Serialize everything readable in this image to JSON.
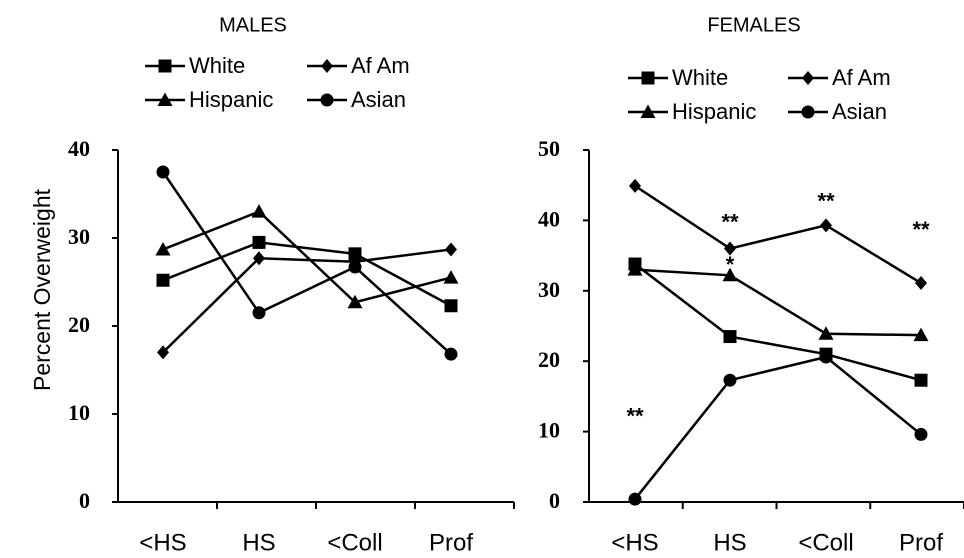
{
  "chart_data": [
    {
      "type": "line",
      "title": "MALES",
      "ylabel": "Percent Overweight",
      "xlabel": "",
      "categories": [
        "<HS",
        "HS",
        "<Coll",
        "Prof"
      ],
      "ylim": [
        0,
        40
      ],
      "yticks": [
        "0",
        "10",
        "20",
        "30",
        "40"
      ],
      "legend_location": "top",
      "series": [
        {
          "name": "White",
          "marker": "square",
          "values": [
            25.2,
            29.5,
            28.2,
            22.3
          ]
        },
        {
          "name": "Af Am",
          "marker": "diamond",
          "values": [
            17.0,
            27.7,
            27.3,
            28.7
          ]
        },
        {
          "name": "Hispanic",
          "marker": "triangle",
          "values": [
            28.7,
            33.0,
            22.7,
            25.5
          ]
        },
        {
          "name": "Asian",
          "marker": "circle",
          "values": [
            37.5,
            21.5,
            26.7,
            16.8
          ]
        }
      ],
      "annotations": []
    },
    {
      "type": "line",
      "title": "FEMALES",
      "ylabel": "",
      "xlabel": "",
      "categories": [
        "<HS",
        "HS",
        "<Coll",
        "Prof"
      ],
      "ylim": [
        0,
        50
      ],
      "yticks": [
        "0",
        "10",
        "20",
        "30",
        "40",
        "50"
      ],
      "legend_location": "top",
      "series": [
        {
          "name": "White",
          "marker": "square",
          "values": [
            33.8,
            23.5,
            21.0,
            17.3
          ]
        },
        {
          "name": "Af Am",
          "marker": "diamond",
          "values": [
            44.9,
            36.0,
            39.3,
            31.1
          ]
        },
        {
          "name": "Hispanic",
          "marker": "triangle",
          "values": [
            33.0,
            32.2,
            23.9,
            23.7
          ]
        },
        {
          "name": "Asian",
          "marker": "circle",
          "values": [
            0.4,
            17.3,
            20.6,
            9.6
          ]
        }
      ],
      "annotations": [
        {
          "category": "<HS",
          "value": 12,
          "text": "**"
        },
        {
          "category": "HS",
          "value": 39.5,
          "text": "**"
        },
        {
          "category": "HS",
          "value": 33.5,
          "text": "*"
        },
        {
          "category": "<Coll",
          "value": 42.5,
          "text": "**"
        },
        {
          "category": "Prof",
          "value": 38.5,
          "text": "**"
        }
      ]
    }
  ]
}
